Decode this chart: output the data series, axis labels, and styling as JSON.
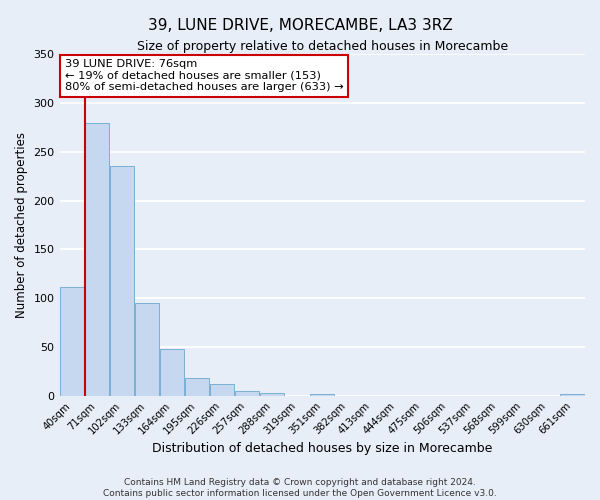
{
  "title": "39, LUNE DRIVE, MORECAMBE, LA3 3RZ",
  "subtitle": "Size of property relative to detached houses in Morecambe",
  "xlabel": "Distribution of detached houses by size in Morecambe",
  "ylabel": "Number of detached properties",
  "bin_labels": [
    "40sqm",
    "71sqm",
    "102sqm",
    "133sqm",
    "164sqm",
    "195sqm",
    "226sqm",
    "257sqm",
    "288sqm",
    "319sqm",
    "351sqm",
    "382sqm",
    "413sqm",
    "444sqm",
    "475sqm",
    "506sqm",
    "537sqm",
    "568sqm",
    "599sqm",
    "630sqm",
    "661sqm"
  ],
  "bar_values": [
    112,
    280,
    235,
    95,
    48,
    18,
    12,
    5,
    3,
    0,
    2,
    0,
    0,
    0,
    0,
    0,
    0,
    0,
    0,
    0,
    2
  ],
  "bar_color": "#c5d8f0",
  "bar_edge_color": "#7aafd4",
  "vline_color": "#cc0000",
  "ylim": [
    0,
    350
  ],
  "yticks": [
    0,
    50,
    100,
    150,
    200,
    250,
    300,
    350
  ],
  "annotation_title": "39 LUNE DRIVE: 76sqm",
  "annotation_line1": "← 19% of detached houses are smaller (153)",
  "annotation_line2": "80% of semi-detached houses are larger (633) →",
  "annotation_box_color": "#ffffff",
  "annotation_box_edge_color": "#cc0000",
  "footer_line1": "Contains HM Land Registry data © Crown copyright and database right 2024.",
  "footer_line2": "Contains public sector information licensed under the Open Government Licence v3.0.",
  "background_color": "#e8eef8",
  "plot_bg_color": "#e8eef8",
  "grid_color": "#ffffff"
}
